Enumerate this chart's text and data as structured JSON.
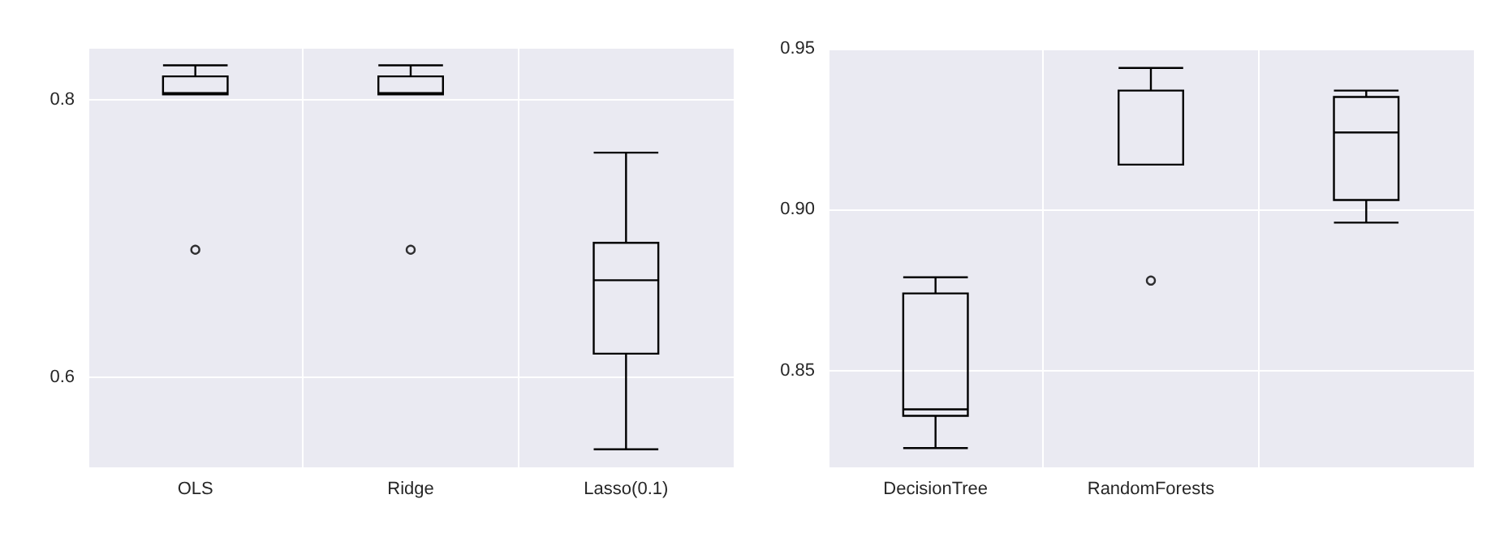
{
  "chart_data": [
    {
      "type": "box",
      "categories": [
        "OLS",
        "Ridge",
        "Lasso(0.1)"
      ],
      "color": "#000000",
      "boxes": [
        {
          "low": 0.804,
          "q1": 0.804,
          "median": 0.805,
          "q3": 0.817,
          "high": 0.825,
          "outliers": [
            0.692
          ]
        },
        {
          "low": 0.804,
          "q1": 0.804,
          "median": 0.805,
          "q3": 0.817,
          "high": 0.825,
          "outliers": [
            0.692
          ]
        },
        {
          "low": 0.548,
          "q1": 0.617,
          "median": 0.67,
          "q3": 0.697,
          "high": 0.762
        }
      ],
      "ylim": [
        0.535,
        0.837
      ],
      "yticks": [
        0.6,
        0.8
      ],
      "grid": true
    },
    {
      "type": "box",
      "categories": [
        "DecisionTree",
        "RandomForests",
        null
      ],
      "color": "#000000",
      "boxes": [
        {
          "low": 0.826,
          "q1": 0.836,
          "median": 0.838,
          "q3": 0.874,
          "high": 0.879
        },
        {
          "low": 0.914,
          "q1": 0.914,
          "median": 0.914,
          "q3": 0.937,
          "high": 0.944,
          "outliers": [
            0.878
          ]
        },
        {
          "low": 0.896,
          "q1": 0.903,
          "median": 0.924,
          "q3": 0.935,
          "high": 0.937
        }
      ],
      "ylim": [
        0.82,
        0.95
      ],
      "yticks": [
        0.85,
        {
          "value": 0.9,
          "label": "0.90"
        },
        0.95
      ],
      "grid": true
    }
  ]
}
